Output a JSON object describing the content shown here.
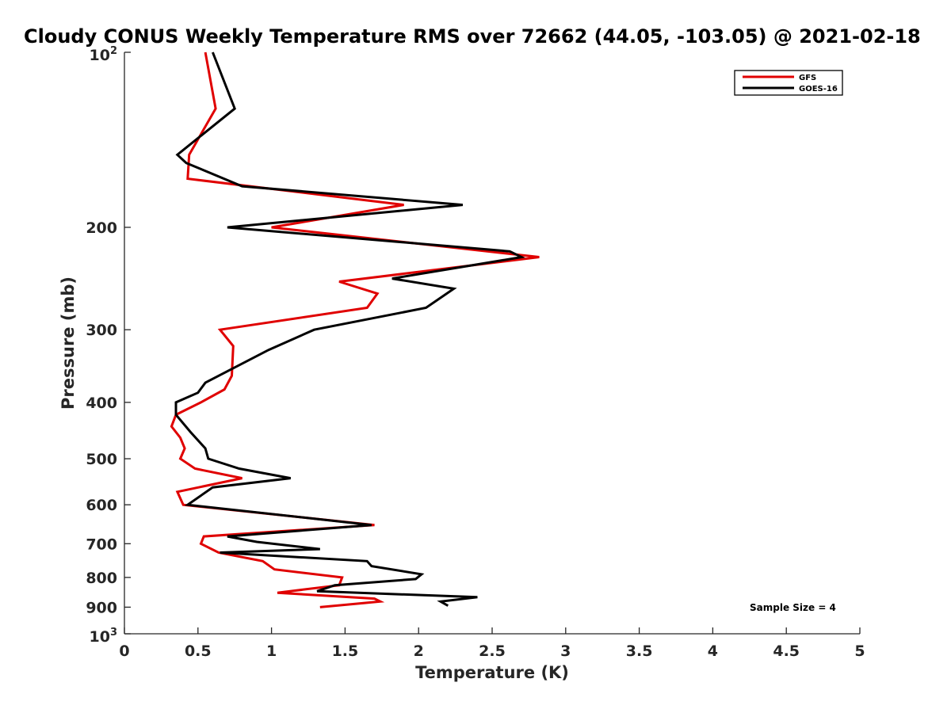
{
  "chart_data": {
    "type": "line",
    "title": "Cloudy CONUS Weekly Temperature RMS over 72662 (44.05, -103.05) @ 2021-02-18",
    "xlabel": "Temperature (K)",
    "ylabel": "Pressure (mb)",
    "xlim": [
      0,
      5
    ],
    "ylim": [
      100,
      1000
    ],
    "yscale": "log",
    "y_reversed": true,
    "xticks": [
      0,
      0.5,
      1,
      1.5,
      2,
      2.5,
      3,
      3.5,
      4,
      4.5,
      5
    ],
    "xtick_labels": [
      "0",
      "0.5",
      "1",
      "1.5",
      "2",
      "2.5",
      "3",
      "3.5",
      "4",
      "4.5",
      "5"
    ],
    "yticks": [
      200,
      300,
      400,
      500,
      600,
      700,
      800,
      900
    ],
    "ytick_labels": [
      "200",
      "300",
      "400",
      "500",
      "600",
      "700",
      "800",
      "900"
    ],
    "ytick_top_base": "10",
    "ytick_top_exp": "2",
    "ytick_bottom_base": "10",
    "ytick_bottom_exp": "3",
    "grid": false,
    "legend_position": "top-right",
    "annotation": "Sample Size = 4",
    "series": [
      {
        "name": "GFS",
        "color": "#e00000",
        "points": [
          [
            0.55,
            100
          ],
          [
            0.62,
            125
          ],
          [
            0.44,
            150
          ],
          [
            0.43,
            165
          ],
          [
            1.9,
            183
          ],
          [
            1.0,
            200
          ],
          [
            2.82,
            225
          ],
          [
            1.46,
            248
          ],
          [
            1.72,
            260
          ],
          [
            1.65,
            275
          ],
          [
            0.65,
            300
          ],
          [
            0.74,
            320
          ],
          [
            0.73,
            360
          ],
          [
            0.68,
            380
          ],
          [
            0.52,
            400
          ],
          [
            0.35,
            420
          ],
          [
            0.32,
            440
          ],
          [
            0.38,
            460
          ],
          [
            0.41,
            480
          ],
          [
            0.38,
            500
          ],
          [
            0.48,
            520
          ],
          [
            0.8,
            540
          ],
          [
            0.36,
            570
          ],
          [
            0.4,
            600
          ],
          [
            1.7,
            650
          ],
          [
            0.54,
            680
          ],
          [
            0.52,
            700
          ],
          [
            0.64,
            725
          ],
          [
            0.94,
            750
          ],
          [
            1.02,
            775
          ],
          [
            1.48,
            800
          ],
          [
            1.46,
            825
          ],
          [
            1.04,
            850
          ],
          [
            1.7,
            870
          ],
          [
            1.74,
            880
          ],
          [
            1.33,
            900
          ]
        ]
      },
      {
        "name": "GOES-16",
        "color": "#000000",
        "points": [
          [
            0.6,
            100
          ],
          [
            0.75,
            125
          ],
          [
            0.36,
            150
          ],
          [
            0.42,
            155
          ],
          [
            0.8,
            170
          ],
          [
            2.3,
            183
          ],
          [
            0.7,
            200
          ],
          [
            2.62,
            220
          ],
          [
            2.7,
            225
          ],
          [
            1.82,
            245
          ],
          [
            2.24,
            255
          ],
          [
            2.05,
            275
          ],
          [
            1.29,
            300
          ],
          [
            0.98,
            325
          ],
          [
            0.55,
            370
          ],
          [
            0.5,
            385
          ],
          [
            0.35,
            400
          ],
          [
            0.35,
            420
          ],
          [
            0.45,
            450
          ],
          [
            0.55,
            480
          ],
          [
            0.57,
            500
          ],
          [
            0.78,
            520
          ],
          [
            1.13,
            540
          ],
          [
            0.6,
            560
          ],
          [
            0.43,
            600
          ],
          [
            1.68,
            650
          ],
          [
            0.7,
            680
          ],
          [
            0.9,
            695
          ],
          [
            1.33,
            715
          ],
          [
            0.65,
            725
          ],
          [
            1.65,
            750
          ],
          [
            1.68,
            765
          ],
          [
            2.02,
            790
          ],
          [
            1.98,
            805
          ],
          [
            1.43,
            825
          ],
          [
            1.31,
            845
          ],
          [
            2.4,
            865
          ],
          [
            2.15,
            880
          ],
          [
            2.2,
            895
          ]
        ]
      }
    ]
  }
}
